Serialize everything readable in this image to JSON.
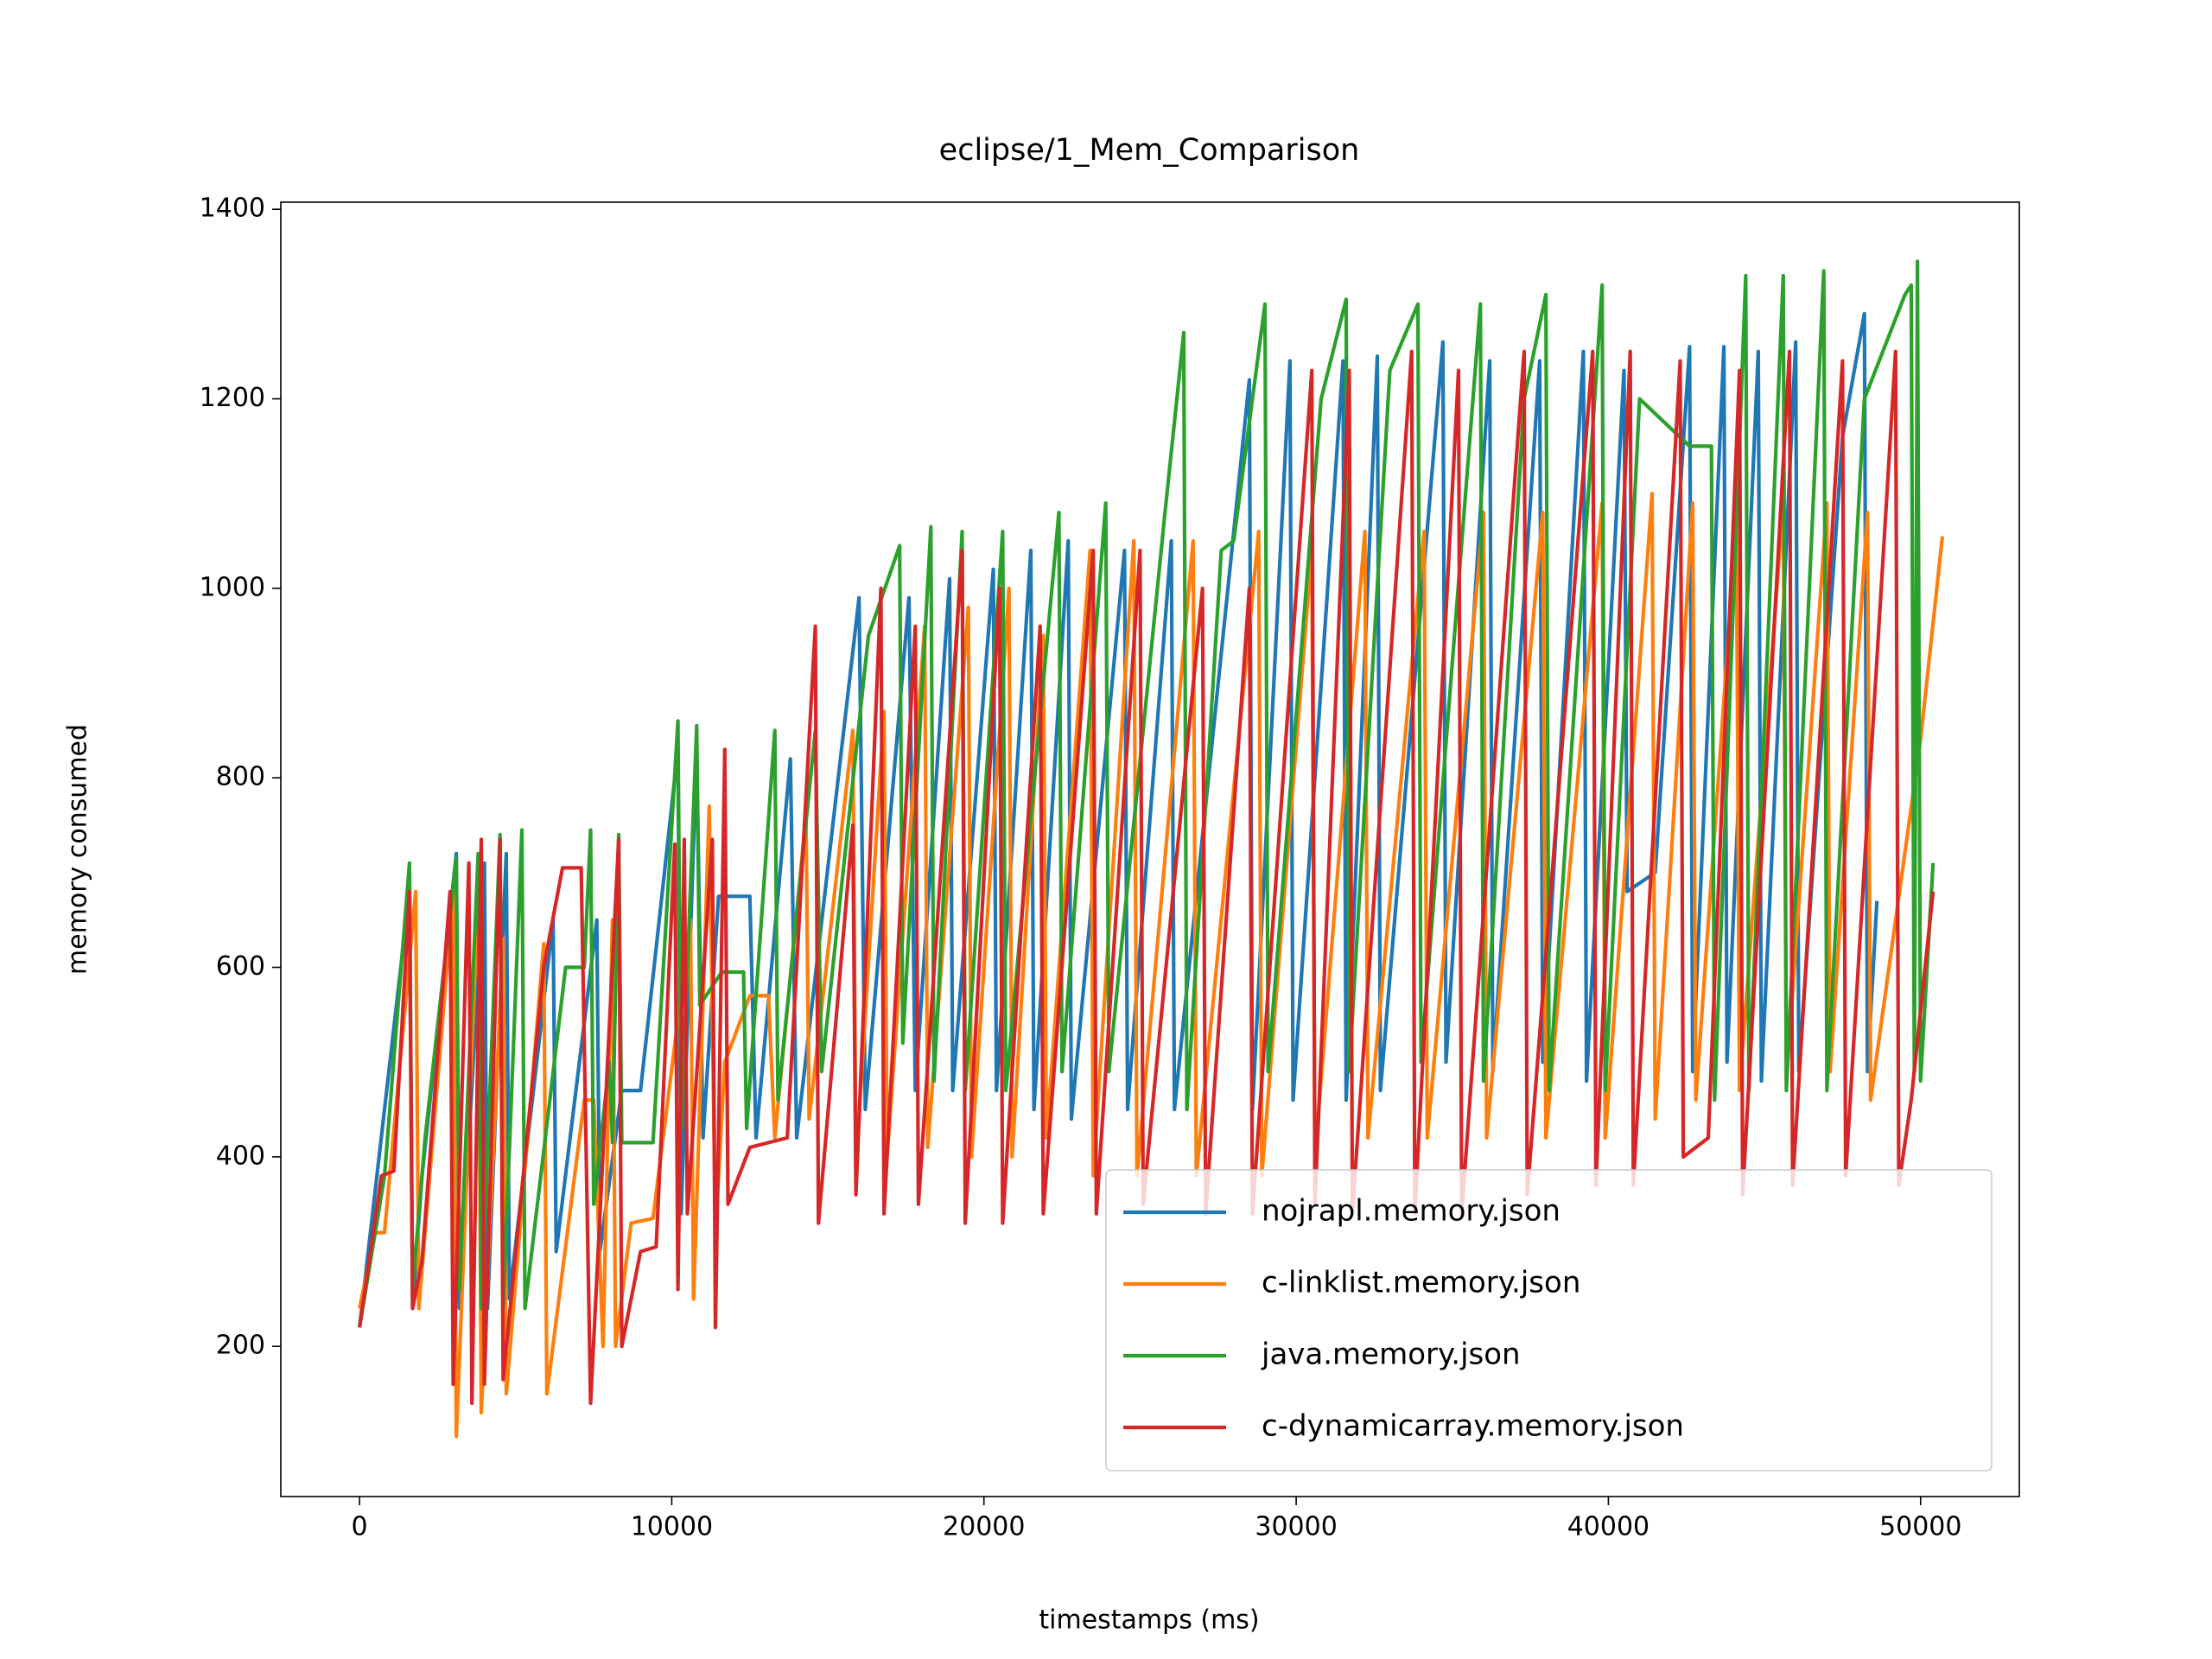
{
  "chart_data": {
    "type": "line",
    "title": "eclipse/1_Mem_Comparison",
    "x_label": "timestamps (ms)",
    "y_label": "memory consumed",
    "xlim": [
      -2521,
      53162
    ],
    "ylim": [
      41.5,
      1407.5
    ],
    "xticks": [
      0,
      10000,
      20000,
      30000,
      40000,
      50000
    ],
    "yticks": [
      200,
      400,
      600,
      800,
      1000,
      1200,
      1400
    ],
    "legend": "lower right",
    "grid": false,
    "series": [
      {
        "name": "nojrapl.memory.json",
        "color": "#1f77b4",
        "x": [
          0,
          1600,
          1700,
          2000,
          3100,
          3200,
          4000,
          4100,
          4700,
          4800,
          6200,
          6300,
          7600,
          7700,
          8400,
          9000,
          10200,
          10300,
          10800,
          11000,
          11500,
          12500,
          12700,
          13800,
          14000,
          16000,
          16200,
          17600,
          17800,
          18900,
          19000,
          20300,
          20400,
          21500,
          21600,
          22700,
          22800,
          24500,
          24600,
          26000,
          26100,
          28500,
          28600,
          29800,
          29900,
          31500,
          31600,
          32600,
          32700,
          34700,
          34800,
          36200,
          36300,
          37800,
          37900,
          39200,
          39300,
          40500,
          40600,
          41500,
          42600,
          42700,
          43700,
          43800,
          44800,
          44900,
          46000,
          46100,
          47500,
          48200,
          48300,
          48600
        ],
        "values": [
          220,
          680,
          240,
          380,
          720,
          240,
          710,
          240,
          720,
          250,
          650,
          300,
          650,
          300,
          470,
          470,
          830,
          340,
          830,
          420,
          675,
          675,
          420,
          820,
          420,
          990,
          450,
          990,
          470,
          1010,
          470,
          1020,
          470,
          1040,
          450,
          1050,
          440,
          1040,
          450,
          1050,
          450,
          1220,
          450,
          1240,
          460,
          1240,
          460,
          1245,
          470,
          1260,
          500,
          1240,
          490,
          1240,
          500,
          1250,
          480,
          1230,
          680,
          700,
          1255,
          490,
          1255,
          500,
          1250,
          480,
          1260,
          490,
          1160,
          1290,
          490,
          670
        ]
      },
      {
        "name": "c-linklist.memory.json",
        "color": "#ff7f0e",
        "x": [
          0,
          500,
          800,
          1800,
          1900,
          3000,
          3100,
          3800,
          3900,
          4600,
          4700,
          5900,
          6000,
          7200,
          7500,
          7800,
          8100,
          8200,
          8700,
          9400,
          10600,
          10700,
          11200,
          11400,
          11700,
          12500,
          13100,
          13300,
          14300,
          14400,
          15800,
          15900,
          16800,
          16900,
          18100,
          18200,
          19500,
          19600,
          20800,
          20900,
          21900,
          22000,
          23400,
          23500,
          24800,
          24900,
          26700,
          26800,
          28800,
          28900,
          30500,
          30600,
          32200,
          32300,
          34100,
          34200,
          36000,
          36100,
          37900,
          38000,
          39800,
          39900,
          41400,
          41500,
          42700,
          42800,
          44100,
          44200,
          45600,
          45700,
          47000,
          47100,
          48300,
          48400,
          50000,
          50700
        ],
        "values": [
          240,
          320,
          320,
          680,
          240,
          680,
          105,
          680,
          130,
          630,
          150,
          625,
          150,
          460,
          460,
          200,
          650,
          200,
          330,
          335,
          650,
          250,
          770,
          320,
          500,
          570,
          570,
          420,
          760,
          440,
          850,
          390,
          870,
          400,
          960,
          410,
          980,
          400,
          1000,
          400,
          950,
          420,
          1040,
          380,
          1050,
          380,
          1050,
          380,
          1060,
          380,
          1040,
          400,
          1060,
          420,
          1060,
          420,
          1080,
          420,
          1080,
          420,
          1090,
          420,
          1100,
          440,
          1090,
          460,
          1070,
          470,
          1090,
          480,
          1090,
          490,
          1080,
          460,
          840,
          1055
        ]
      },
      {
        "name": "java.memory.json",
        "color": "#2ca02c",
        "x": [
          0,
          800,
          1600,
          1700,
          2100,
          3100,
          3200,
          3800,
          3900,
          4500,
          4600,
          5200,
          5300,
          6600,
          7200,
          7400,
          7500,
          8000,
          8100,
          8300,
          8400,
          9400,
          10200,
          10300,
          10800,
          10900,
          11600,
          12300,
          12400,
          13300,
          13400,
          14600,
          14800,
          16300,
          17300,
          17400,
          18300,
          18400,
          19300,
          19400,
          20600,
          20700,
          22400,
          22500,
          23900,
          24000,
          25800,
          26400,
          26500,
          27600,
          28000,
          29000,
          29100,
          30800,
          31600,
          31700,
          33000,
          33900,
          34000,
          35900,
          36000,
          37300,
          38000,
          38100,
          39800,
          39900,
          41000,
          42600,
          43300,
          43400,
          44400,
          44500,
          45600,
          45700,
          46900,
          47000,
          48200,
          49500,
          49700,
          49800,
          49900,
          50000,
          50400
        ],
        "values": [
          220,
          380,
          710,
          260,
          420,
          715,
          260,
          720,
          240,
          740,
          240,
          745,
          240,
          600,
          600,
          745,
          350,
          500,
          415,
          740,
          415,
          415,
          860,
          430,
          855,
          560,
          595,
          595,
          430,
          850,
          460,
          850,
          490,
          950,
          1045,
          520,
          1065,
          480,
          1060,
          470,
          1060,
          470,
          1080,
          490,
          1090,
          490,
          1080,
          1270,
          450,
          1040,
          1050,
          1300,
          490,
          1200,
          1305,
          490,
          1230,
          1300,
          500,
          1300,
          480,
          1200,
          1310,
          470,
          1320,
          470,
          1200,
          1150,
          1150,
          460,
          1330,
          470,
          1330,
          470,
          1335,
          470,
          1200,
          1310,
          1320,
          490,
          1345,
          480,
          710
        ]
      },
      {
        "name": "c-dynamicarray.memory.json",
        "color": "#d62728",
        "x": [
          0,
          700,
          1100,
          1600,
          1700,
          2000,
          2900,
          3000,
          3500,
          3600,
          3900,
          4000,
          4500,
          4600,
          5900,
          6500,
          7100,
          7400,
          8300,
          8400,
          9000,
          9500,
          10100,
          10200,
          10400,
          10500,
          11300,
          11400,
          11700,
          11800,
          12500,
          13700,
          14600,
          14700,
          15800,
          15900,
          16700,
          16800,
          17800,
          17900,
          19300,
          19400,
          20500,
          20600,
          21800,
          21900,
          23500,
          23600,
          25000,
          25100,
          27000,
          27100,
          28500,
          28600,
          30500,
          30600,
          31700,
          31800,
          33700,
          33800,
          35200,
          35300,
          37300,
          37400,
          39500,
          39600,
          40700,
          40800,
          42300,
          42400,
          43200,
          44200,
          44300,
          45800,
          45900,
          47500,
          47600,
          49200,
          49300,
          49700,
          50400
        ],
        "values": [
          220,
          380,
          385,
          680,
          240,
          290,
          680,
          160,
          710,
          140,
          735,
          160,
          735,
          165,
          600,
          705,
          705,
          140,
          735,
          200,
          300,
          305,
          730,
          260,
          735,
          340,
          735,
          220,
          830,
          350,
          410,
          420,
          960,
          330,
          750,
          360,
          1000,
          340,
          960,
          350,
          1040,
          330,
          1000,
          330,
          960,
          340,
          1040,
          340,
          1040,
          350,
          1000,
          340,
          1000,
          340,
          1230,
          350,
          1230,
          340,
          1250,
          340,
          1230,
          340,
          1250,
          360,
          1250,
          370,
          1250,
          370,
          1240,
          400,
          420,
          1230,
          360,
          1250,
          370,
          1240,
          380,
          1250,
          370,
          460,
          680
        ]
      }
    ]
  }
}
